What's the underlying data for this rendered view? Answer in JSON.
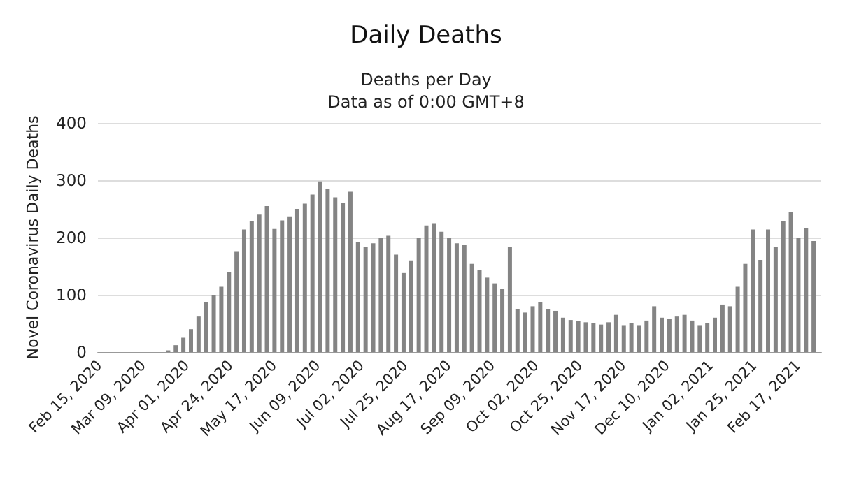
{
  "chart_data": {
    "type": "bar",
    "title": "Daily Deaths",
    "subtitle": "Deaths per Day\nData as of 0:00 GMT+8",
    "ylabel": "Novel Coronavirus Daily Deaths",
    "x": [
      "2020-02-15",
      "2020-02-19",
      "2020-02-23",
      "2020-02-27",
      "2020-03-02",
      "2020-03-06",
      "2020-03-10",
      "2020-03-14",
      "2020-03-18",
      "2020-03-22",
      "2020-03-26",
      "2020-03-30",
      "2020-04-03",
      "2020-04-07",
      "2020-04-11",
      "2020-04-15",
      "2020-04-19",
      "2020-04-23",
      "2020-04-27",
      "2020-05-01",
      "2020-05-05",
      "2020-05-09",
      "2020-05-13",
      "2020-05-17",
      "2020-05-21",
      "2020-05-25",
      "2020-05-29",
      "2020-06-02",
      "2020-06-06",
      "2020-06-10",
      "2020-06-14",
      "2020-06-18",
      "2020-06-22",
      "2020-06-26",
      "2020-06-30",
      "2020-07-04",
      "2020-07-08",
      "2020-07-12",
      "2020-07-16",
      "2020-07-20",
      "2020-07-24",
      "2020-07-28",
      "2020-08-01",
      "2020-08-05",
      "2020-08-09",
      "2020-08-13",
      "2020-08-17",
      "2020-08-21",
      "2020-08-25",
      "2020-08-29",
      "2020-09-02",
      "2020-09-06",
      "2020-09-10",
      "2020-09-14",
      "2020-09-18",
      "2020-09-22",
      "2020-09-26",
      "2020-09-30",
      "2020-10-04",
      "2020-10-08",
      "2020-10-12",
      "2020-10-16",
      "2020-10-20",
      "2020-10-24",
      "2020-10-28",
      "2020-11-01",
      "2020-11-05",
      "2020-11-09",
      "2020-11-13",
      "2020-11-17",
      "2020-11-21",
      "2020-11-25",
      "2020-11-29",
      "2020-12-03",
      "2020-12-07",
      "2020-12-11",
      "2020-12-15",
      "2020-12-19",
      "2020-12-23",
      "2020-12-27",
      "2020-12-31",
      "2021-01-04",
      "2021-01-08",
      "2021-01-12",
      "2021-01-16",
      "2021-01-20",
      "2021-01-24",
      "2021-01-28",
      "2021-02-01",
      "2021-02-05",
      "2021-02-09",
      "2021-02-13",
      "2021-02-17",
      "2021-02-21",
      "2021-02-25"
    ],
    "values": [
      0,
      0,
      0,
      0,
      0,
      0,
      0,
      0,
      0,
      3,
      12,
      25,
      40,
      62,
      87,
      100,
      114,
      140,
      175,
      214,
      228,
      240,
      255,
      215,
      230,
      237,
      250,
      259,
      275,
      298,
      285,
      270,
      261,
      280,
      192,
      184,
      190,
      200,
      203,
      170,
      138,
      160,
      200,
      221,
      225,
      210,
      199,
      190,
      187,
      154,
      143,
      130,
      120,
      110,
      183,
      75,
      69,
      80,
      87,
      75,
      72,
      60,
      56,
      54,
      52,
      50,
      48,
      52,
      65,
      47,
      50,
      47,
      55,
      80,
      60,
      58,
      62,
      65,
      55,
      47,
      50,
      60,
      83,
      80,
      114,
      154,
      214,
      161,
      214,
      183,
      228,
      244,
      199,
      217,
      194
    ],
    "color": "#848484",
    "xlim": [
      "2020-02-14",
      "2021-03-01"
    ],
    "xticks": [
      {
        "value": "2020-02-15",
        "label": "Feb 15, 2020"
      },
      {
        "value": "2020-03-09",
        "label": "Mar 09, 2020"
      },
      {
        "value": "2020-04-01",
        "label": "Apr 01, 2020"
      },
      {
        "value": "2020-04-24",
        "label": "Apr 24, 2020"
      },
      {
        "value": "2020-05-17",
        "label": "May 17, 2020"
      },
      {
        "value": "2020-06-09",
        "label": "Jun 09, 2020"
      },
      {
        "value": "2020-07-02",
        "label": "Jul 02, 2020"
      },
      {
        "value": "2020-07-25",
        "label": "Jul 25, 2020"
      },
      {
        "value": "2020-08-17",
        "label": "Aug 17, 2020"
      },
      {
        "value": "2020-09-09",
        "label": "Sep 09, 2020"
      },
      {
        "value": "2020-10-02",
        "label": "Oct 02, 2020"
      },
      {
        "value": "2020-10-25",
        "label": "Oct 25, 2020"
      },
      {
        "value": "2020-11-17",
        "label": "Nov 17, 2020"
      },
      {
        "value": "2020-12-10",
        "label": "Dec 10, 2020"
      },
      {
        "value": "2021-01-02",
        "label": "Jan 02, 2021"
      },
      {
        "value": "2021-01-25",
        "label": "Jan 25, 2021"
      },
      {
        "value": "2021-02-17",
        "label": "Feb 17, 2021"
      }
    ],
    "ylim": [
      0,
      400
    ],
    "yticks": [
      0,
      100,
      200,
      300,
      400
    ],
    "grid": "y"
  }
}
